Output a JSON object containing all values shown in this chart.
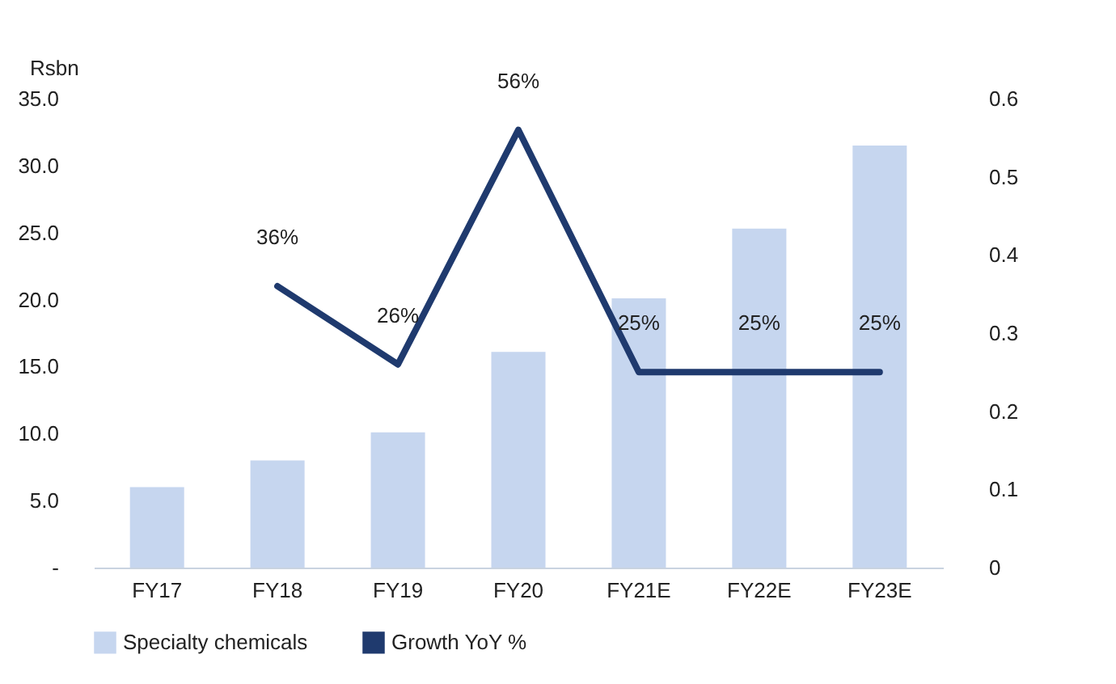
{
  "chart_data": {
    "type": "bar",
    "ylabel": "Rsbn",
    "categories": [
      "FY17",
      "FY18",
      "FY19",
      "FY20",
      "FY21E",
      "FY22E",
      "FY23E"
    ],
    "series": [
      {
        "name": "Specialty chemicals",
        "color": "#c6d6ef",
        "values": [
          6.0,
          8.0,
          10.1,
          16.1,
          20.1,
          25.3,
          31.5
        ]
      },
      {
        "name": "Growth YoY %",
        "type": "line",
        "axis": "y2",
        "color": "#1f3a6e",
        "values": [
          null,
          0.36,
          0.26,
          0.56,
          0.25,
          0.25,
          0.25
        ],
        "value_labels": [
          null,
          "36%",
          "26%",
          "56%",
          "25%",
          "25%",
          "25%"
        ]
      }
    ],
    "ylim": [
      0,
      35
    ],
    "yticks": [
      {
        "value": 0,
        "label": "-"
      },
      {
        "value": 5,
        "label": "5.0"
      },
      {
        "value": 10,
        "label": "10.0"
      },
      {
        "value": 15,
        "label": "15.0"
      },
      {
        "value": 20,
        "label": "20.0"
      },
      {
        "value": 25,
        "label": "25.0"
      },
      {
        "value": 30,
        "label": "30.0"
      },
      {
        "value": 35,
        "label": "35.0"
      }
    ],
    "y2lim": [
      0,
      0.6
    ],
    "y2ticks": [
      0,
      0.1,
      0.2,
      0.3,
      0.4,
      0.5,
      0.6
    ],
    "grid": false,
    "legend": "bottom"
  }
}
